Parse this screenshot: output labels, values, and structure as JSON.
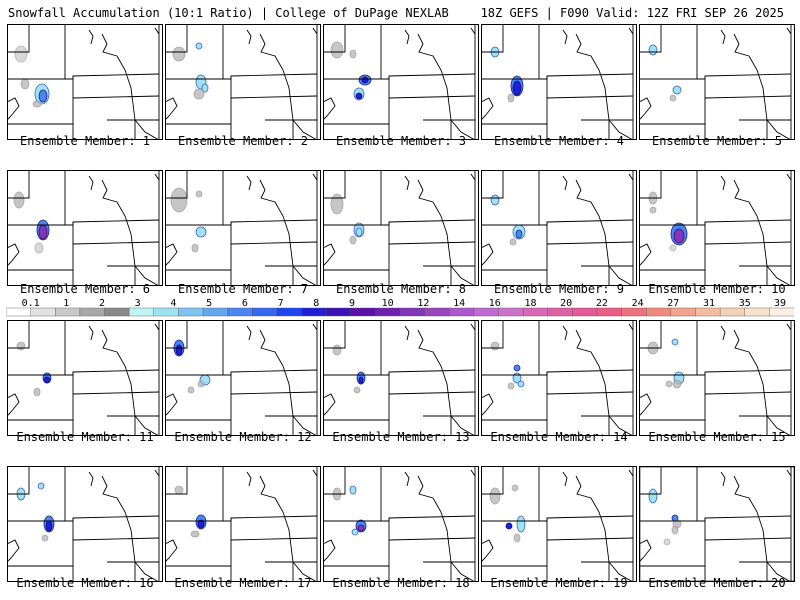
{
  "header": {
    "left": "Snowfall Accumulation (10:1 Ratio) | College of DuPage NEXLAB",
    "right": "18Z GEFS | F090 Valid: 12Z FRI SEP 26 2025"
  },
  "members": [
    {
      "label": "Ensemble Member: 1"
    },
    {
      "label": "Ensemble Member: 2"
    },
    {
      "label": "Ensemble Member: 3"
    },
    {
      "label": "Ensemble Member: 4"
    },
    {
      "label": "Ensemble Member: 5"
    },
    {
      "label": "Ensemble Member: 6"
    },
    {
      "label": "Ensemble Member: 7"
    },
    {
      "label": "Ensemble Member: 8"
    },
    {
      "label": "Ensemble Member: 9"
    },
    {
      "label": "Ensemble Member: 10"
    },
    {
      "label": "Ensemble Member: 11"
    },
    {
      "label": "Ensemble Member: 12"
    },
    {
      "label": "Ensemble Member: 13"
    },
    {
      "label": "Ensemble Member: 14"
    },
    {
      "label": "Ensemble Member: 15"
    },
    {
      "label": "Ensemble Member: 16"
    },
    {
      "label": "Ensemble Member: 17"
    },
    {
      "label": "Ensemble Member: 18"
    },
    {
      "label": "Ensemble Member: 19"
    },
    {
      "label": "Ensemble Member: 20"
    }
  ],
  "colorbar": {
    "labels": [
      "0.1",
      "1",
      "2",
      "3",
      "4",
      "5",
      "6",
      "7",
      "8",
      "9",
      "10",
      "12",
      "14",
      "16",
      "18",
      "20",
      "22",
      "24",
      "27",
      "31",
      "35",
      "39"
    ],
    "colors": [
      "#ffffff",
      "#e2e2e2",
      "#c8c8c8",
      "#a8a8a8",
      "#8a8a8a",
      "#bff5f5",
      "#9fe3f2",
      "#7ec6f2",
      "#62a8ef",
      "#4a86ee",
      "#3466f0",
      "#1e44f2",
      "#1f1fd8",
      "#3a10b8",
      "#5a10a8",
      "#6e20b0",
      "#8434b8",
      "#9a44c2",
      "#ae56cc",
      "#c068d4",
      "#cc72c8",
      "#d868b8",
      "#e060a6",
      "#e65896",
      "#ec5c86",
      "#ee707e",
      "#f08a80",
      "#f2a48e",
      "#f4bca2",
      "#f6d0b6",
      "#f8e2cc",
      "#fbf0e2"
    ]
  }
}
